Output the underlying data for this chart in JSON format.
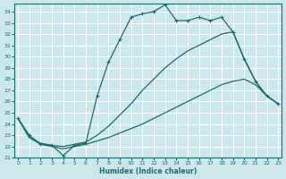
{
  "xlabel": "Humidex (Indice chaleur)",
  "bg_color": "#cce8ec",
  "grid_color": "#b8d8dc",
  "line_color": "#1a6b6b",
  "xlim": [
    -0.3,
    23.3
  ],
  "ylim": [
    21.0,
    34.7
  ],
  "xticks": [
    0,
    1,
    2,
    3,
    4,
    5,
    6,
    7,
    8,
    9,
    10,
    11,
    12,
    13,
    14,
    15,
    16,
    17,
    18,
    19,
    20,
    21,
    22,
    23
  ],
  "yticks": [
    21,
    22,
    23,
    24,
    25,
    26,
    27,
    28,
    29,
    30,
    31,
    32,
    33,
    34
  ],
  "curve1_x": [
    0,
    1,
    2,
    3,
    4,
    5,
    6,
    7,
    8,
    9,
    10,
    11,
    12,
    13,
    14,
    15,
    16,
    17,
    18,
    19,
    20,
    21,
    22,
    23
  ],
  "curve1_y": [
    24.5,
    23.0,
    22.2,
    22.1,
    21.2,
    22.1,
    22.3,
    26.5,
    29.5,
    31.5,
    33.5,
    33.8,
    34.0,
    34.6,
    33.2,
    33.2,
    33.5,
    33.2,
    33.5,
    32.2,
    29.8,
    27.8,
    26.5,
    25.8
  ],
  "curve2_x": [
    0,
    1,
    2,
    3,
    4,
    5,
    6,
    7,
    8,
    9,
    10,
    11,
    12,
    13,
    14,
    15,
    16,
    17,
    18,
    19,
    20,
    21,
    22,
    23
  ],
  "curve2_y": [
    24.5,
    22.8,
    22.3,
    22.1,
    22.0,
    22.2,
    22.4,
    23.0,
    23.8,
    24.8,
    25.8,
    27.0,
    28.0,
    29.0,
    29.8,
    30.5,
    31.0,
    31.5,
    32.0,
    32.2,
    29.8,
    27.8,
    26.5,
    25.8
  ],
  "curve3_x": [
    0,
    1,
    2,
    3,
    4,
    5,
    6,
    7,
    8,
    9,
    10,
    11,
    12,
    13,
    14,
    15,
    16,
    17,
    18,
    19,
    20,
    21,
    22,
    23
  ],
  "curve3_y": [
    24.5,
    22.8,
    22.2,
    22.0,
    21.8,
    22.0,
    22.2,
    22.5,
    22.8,
    23.2,
    23.6,
    24.0,
    24.5,
    25.0,
    25.5,
    26.0,
    26.5,
    27.0,
    27.5,
    27.8,
    28.0,
    27.5,
    26.5,
    25.8
  ]
}
